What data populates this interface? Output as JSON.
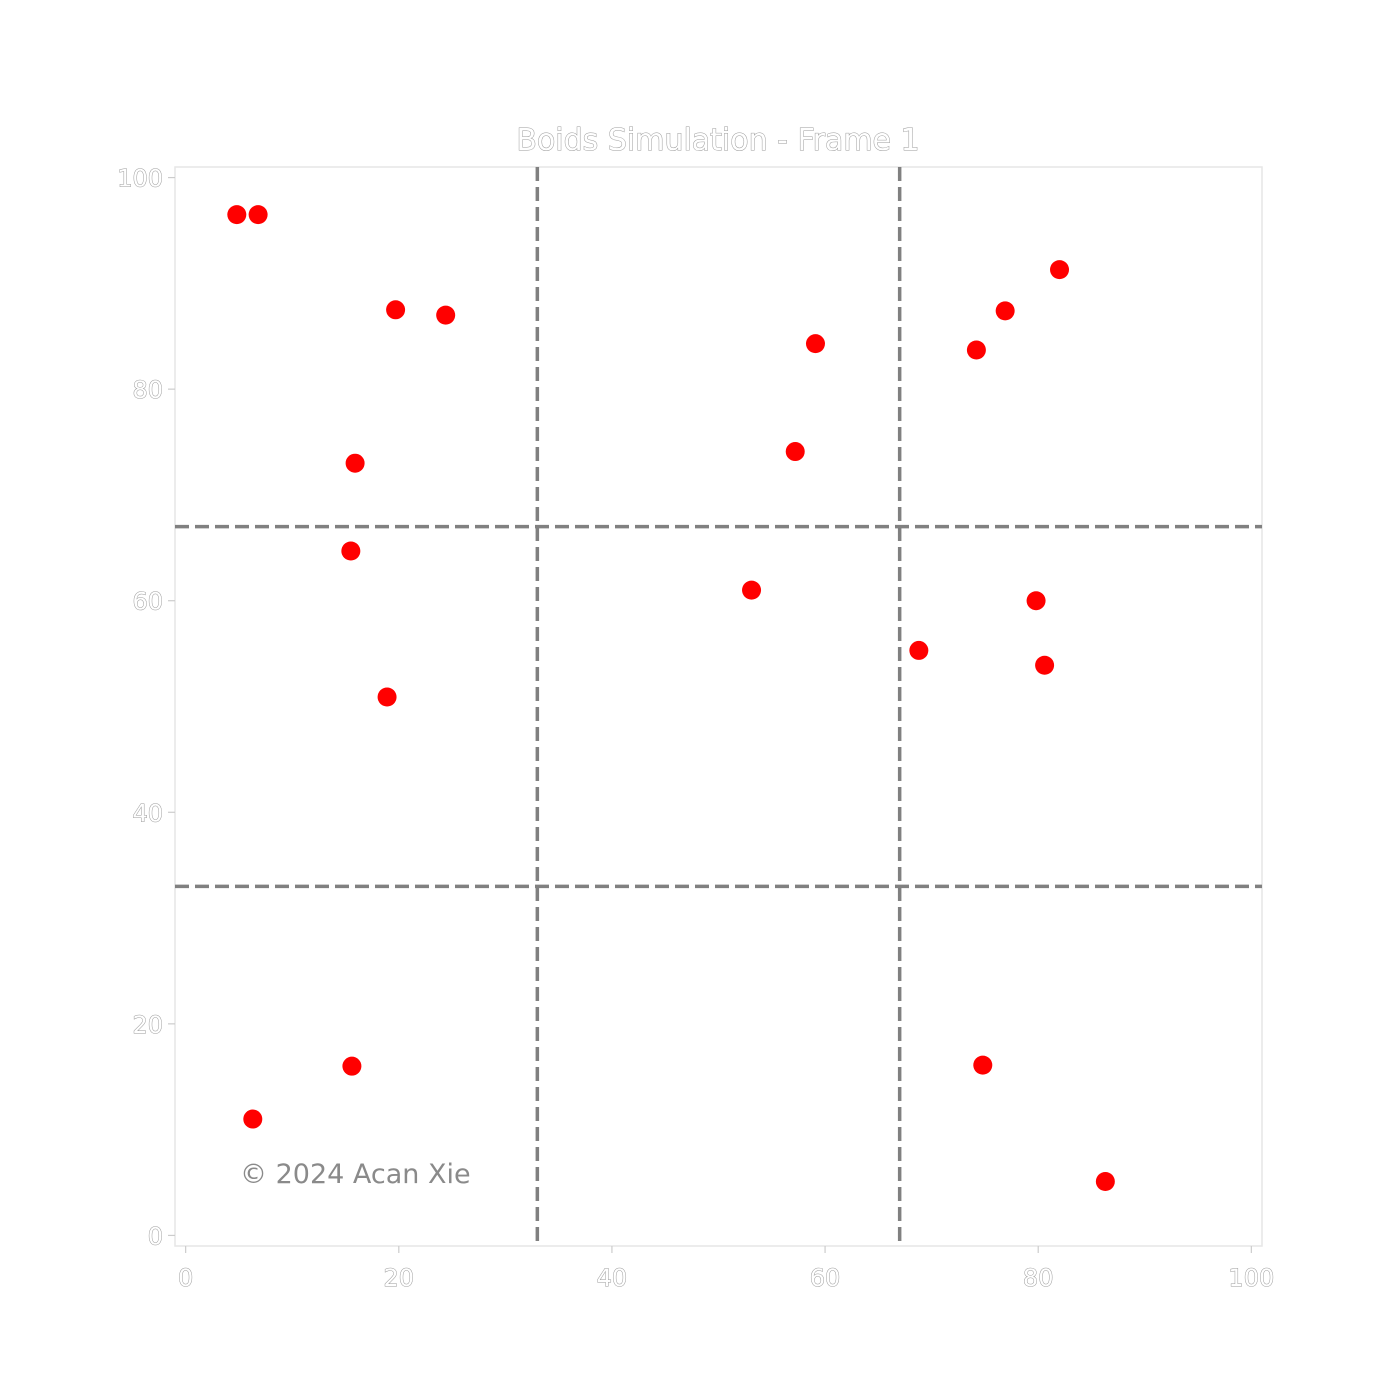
{
  "chart_data": {
    "type": "scatter",
    "title": "Boids Simulation - Frame 1",
    "xlabel": "",
    "ylabel": "",
    "xlim": [
      -1,
      101
    ],
    "ylim": [
      -1,
      101
    ],
    "xticks": [
      0,
      20,
      40,
      60,
      80,
      100
    ],
    "yticks": [
      0,
      20,
      40,
      60,
      80,
      100
    ],
    "grid": false,
    "grid_lines": {
      "x": [
        33,
        67
      ],
      "y": [
        33,
        67
      ],
      "style": "dashed",
      "color": "#808080"
    },
    "marker_color": "#ff0000",
    "points": [
      {
        "x": 4.8,
        "y": 96.5
      },
      {
        "x": 6.8,
        "y": 96.5
      },
      {
        "x": 19.7,
        "y": 87.5
      },
      {
        "x": 24.4,
        "y": 87.0
      },
      {
        "x": 15.9,
        "y": 73.0
      },
      {
        "x": 15.5,
        "y": 64.7
      },
      {
        "x": 18.9,
        "y": 50.9
      },
      {
        "x": 15.6,
        "y": 16.0
      },
      {
        "x": 6.3,
        "y": 11.0
      },
      {
        "x": 59.1,
        "y": 84.3
      },
      {
        "x": 57.2,
        "y": 74.1
      },
      {
        "x": 53.1,
        "y": 61.0
      },
      {
        "x": 74.2,
        "y": 83.7
      },
      {
        "x": 76.9,
        "y": 87.4
      },
      {
        "x": 82.0,
        "y": 91.3
      },
      {
        "x": 79.8,
        "y": 60.0
      },
      {
        "x": 80.6,
        "y": 53.9
      },
      {
        "x": 68.8,
        "y": 55.3
      },
      {
        "x": 74.8,
        "y": 16.1
      },
      {
        "x": 86.3,
        "y": 5.1
      }
    ]
  },
  "watermark": "© 2024 Acan Xie"
}
